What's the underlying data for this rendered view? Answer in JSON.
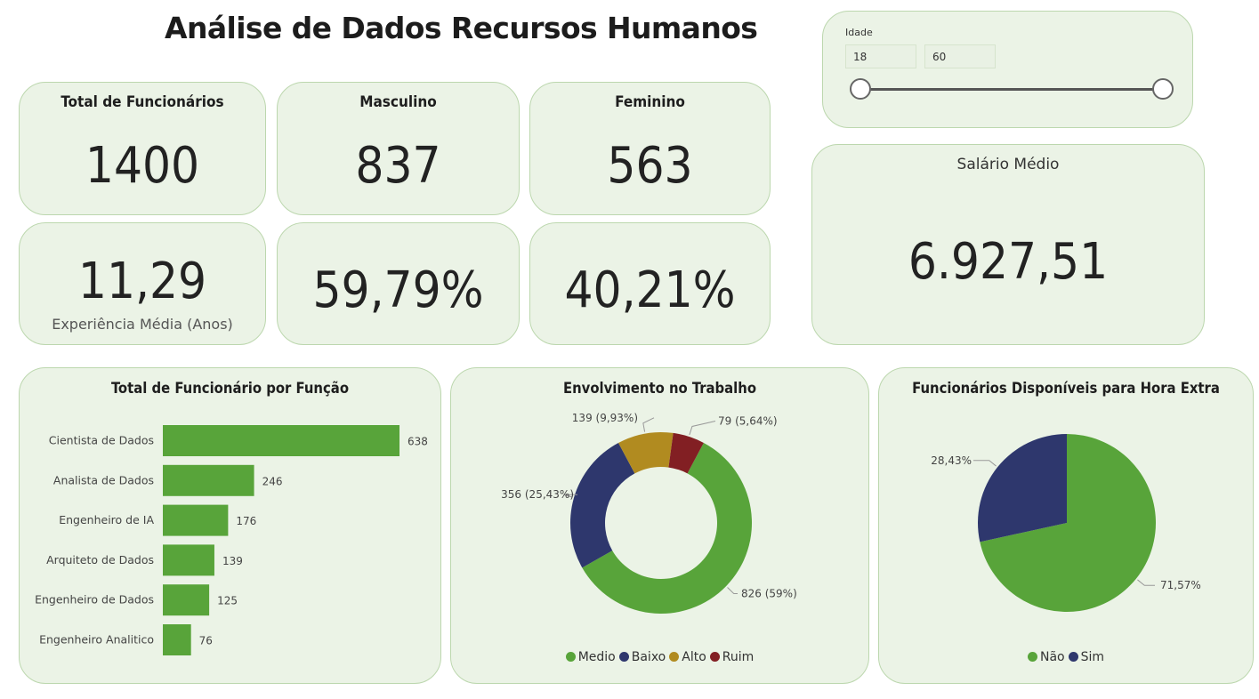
{
  "header": {
    "title": "Análise de Dados Recursos Humanos"
  },
  "filter": {
    "label": "Idade",
    "min": "18",
    "max": "60"
  },
  "kpis": {
    "total": {
      "label": "Total de Funcionários",
      "value": "1400"
    },
    "male": {
      "label": "Masculino",
      "value": "837",
      "pct": "59,79%"
    },
    "female": {
      "label": "Feminino",
      "value": "563",
      "pct": "40,21%"
    },
    "experience": {
      "value": "11,29",
      "label": "Experiência Média (Anos)"
    },
    "salary": {
      "label": "Salário Médio",
      "value": "6.927,51"
    }
  },
  "colors": {
    "green": "#58a43a",
    "navy": "#2e376d",
    "gold": "#b18b20",
    "red": "#821f23"
  },
  "chart_data": [
    {
      "type": "bar",
      "orientation": "horizontal",
      "title": "Total de Funcionário por Função",
      "categories": [
        "Cientista de Dados",
        "Analista de Dados",
        "Engenheiro de IA",
        "Arquiteto de Dados",
        "Engenheiro de Dados",
        "Engenheiro Analitico"
      ],
      "values": [
        638,
        246,
        176,
        139,
        125,
        76
      ],
      "color": "#58a43a"
    },
    {
      "type": "pie",
      "donut": true,
      "title": "Envolvimento no Trabalho",
      "labels": [
        "Medio",
        "Baixo",
        "Alto",
        "Ruim"
      ],
      "values": [
        826,
        356,
        139,
        79
      ],
      "data_labels": [
        "826 (59%)",
        "356 (25,43%)",
        "139 (9,93%)",
        "79 (5,64%)"
      ],
      "colors": [
        "#58a43a",
        "#2e376d",
        "#b18b20",
        "#821f23"
      ]
    },
    {
      "type": "pie",
      "title": "Funcionários Disponíveis para Hora Extra",
      "labels": [
        "Não",
        "Sim"
      ],
      "values": [
        71.57,
        28.43
      ],
      "data_labels": [
        "71,57%",
        "28,43%"
      ],
      "colors": [
        "#58a43a",
        "#2e376d"
      ]
    }
  ]
}
